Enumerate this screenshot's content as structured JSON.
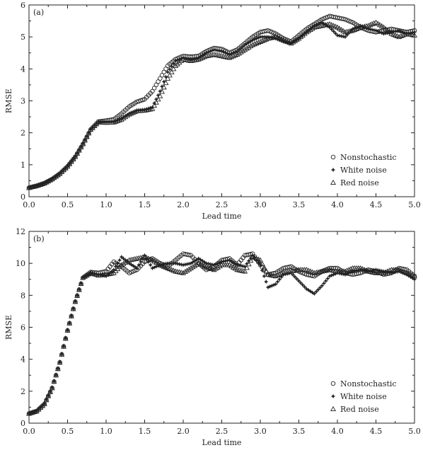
{
  "chart_data": [
    {
      "panel_label": "(a)",
      "type": "scatter",
      "xlabel": "Lead time",
      "ylabel": "RMSE",
      "xlim": [
        0,
        5
      ],
      "ylim": [
        0,
        6
      ],
      "xticks": [
        "0.0",
        "0.5",
        "1.0",
        "1.5",
        "2.0",
        "2.5",
        "3.0",
        "3.5",
        "4.0",
        "4.5",
        "5.0"
      ],
      "yticks": [
        "0",
        "1",
        "2",
        "3",
        "4",
        "5",
        "6"
      ],
      "legend_position": "bottom-right",
      "series": [
        {
          "name": "Nonstochastic",
          "marker": "circle",
          "x": [
            0,
            0.1,
            0.2,
            0.3,
            0.4,
            0.5,
            0.6,
            0.7,
            0.8,
            0.9,
            1.0,
            1.1,
            1.2,
            1.3,
            1.4,
            1.5,
            1.6,
            1.7,
            1.8,
            1.9,
            2.0,
            2.1,
            2.2,
            2.3,
            2.4,
            2.5,
            2.6,
            2.7,
            2.8,
            2.9,
            3.0,
            3.1,
            3.2,
            3.3,
            3.4,
            3.5,
            3.6,
            3.7,
            3.8,
            3.9,
            4.0,
            4.1,
            4.2,
            4.3,
            4.4,
            4.5,
            4.6,
            4.7,
            4.8,
            4.9,
            5.0
          ],
          "y": [
            0.28,
            0.34,
            0.42,
            0.55,
            0.72,
            0.95,
            1.25,
            1.65,
            2.1,
            2.35,
            2.38,
            2.42,
            2.6,
            2.82,
            2.97,
            3.05,
            3.3,
            3.7,
            4.1,
            4.3,
            4.4,
            4.38,
            4.4,
            4.55,
            4.65,
            4.62,
            4.5,
            4.6,
            4.8,
            5.0,
            5.15,
            5.2,
            5.1,
            4.95,
            4.85,
            5.05,
            5.25,
            5.4,
            5.55,
            5.65,
            5.6,
            5.55,
            5.45,
            5.3,
            5.2,
            5.15,
            5.2,
            5.25,
            5.2,
            5.15,
            5.2
          ]
        },
        {
          "name": "White noise",
          "marker": "star",
          "x": [
            0,
            0.1,
            0.2,
            0.3,
            0.4,
            0.5,
            0.6,
            0.7,
            0.8,
            0.9,
            1.0,
            1.1,
            1.2,
            1.3,
            1.4,
            1.5,
            1.6,
            1.7,
            1.8,
            1.9,
            2.0,
            2.1,
            2.2,
            2.3,
            2.4,
            2.5,
            2.6,
            2.7,
            2.8,
            2.9,
            3.0,
            3.1,
            3.2,
            3.3,
            3.4,
            3.5,
            3.6,
            3.7,
            3.8,
            3.9,
            4.0,
            4.1,
            4.2,
            4.3,
            4.4,
            4.5,
            4.6,
            4.7,
            4.8,
            4.9,
            5.0
          ],
          "y": [
            0.28,
            0.34,
            0.42,
            0.55,
            0.72,
            0.95,
            1.25,
            1.65,
            2.1,
            2.35,
            2.35,
            2.35,
            2.45,
            2.6,
            2.7,
            2.72,
            2.8,
            3.3,
            3.9,
            4.25,
            4.35,
            4.3,
            4.35,
            4.5,
            4.6,
            4.55,
            4.45,
            4.55,
            4.75,
            4.9,
            5.0,
            5.0,
            4.95,
            4.85,
            4.8,
            4.95,
            5.15,
            5.35,
            5.45,
            5.3,
            5.05,
            5.0,
            5.25,
            5.35,
            5.25,
            5.2,
            5.1,
            5.15,
            5.2,
            5.1,
            5.15
          ]
        },
        {
          "name": "Red noise",
          "marker": "triangle",
          "x": [
            0,
            0.1,
            0.2,
            0.3,
            0.4,
            0.5,
            0.6,
            0.7,
            0.8,
            0.9,
            1.0,
            1.1,
            1.2,
            1.3,
            1.4,
            1.5,
            1.6,
            1.7,
            1.8,
            1.9,
            2.0,
            2.1,
            2.2,
            2.3,
            2.4,
            2.5,
            2.6,
            2.7,
            2.8,
            2.9,
            3.0,
            3.1,
            3.2,
            3.3,
            3.4,
            3.5,
            3.6,
            3.7,
            3.8,
            3.9,
            4.0,
            4.1,
            4.2,
            4.3,
            4.4,
            4.5,
            4.6,
            4.7,
            4.8,
            4.9,
            5.0
          ],
          "y": [
            0.28,
            0.34,
            0.42,
            0.55,
            0.72,
            0.95,
            1.25,
            1.65,
            2.1,
            2.33,
            2.32,
            2.33,
            2.42,
            2.58,
            2.68,
            2.7,
            2.75,
            3.15,
            3.7,
            4.1,
            4.3,
            4.25,
            4.3,
            4.4,
            4.45,
            4.4,
            4.35,
            4.45,
            4.6,
            4.75,
            4.85,
            4.95,
            5.0,
            4.9,
            4.8,
            4.95,
            5.15,
            5.3,
            5.35,
            5.4,
            5.3,
            5.15,
            5.2,
            5.3,
            5.35,
            5.45,
            5.3,
            5.1,
            5.0,
            5.1,
            5.05
          ]
        }
      ]
    },
    {
      "panel_label": "(b)",
      "type": "scatter",
      "xlabel": "Lead time",
      "ylabel": "RMSE",
      "xlim": [
        0,
        5
      ],
      "ylim": [
        0,
        12
      ],
      "xticks": [
        "0.0",
        "0.5",
        "1.0",
        "1.5",
        "2.0",
        "2.5",
        "3.0",
        "3.5",
        "4.0",
        "4.5",
        "5.0"
      ],
      "yticks": [
        "0",
        "2",
        "4",
        "6",
        "8",
        "10",
        "12"
      ],
      "legend_position": "bottom-right",
      "series": [
        {
          "name": "Nonstochastic",
          "marker": "circle",
          "x": [
            0,
            0.1,
            0.2,
            0.3,
            0.4,
            0.5,
            0.6,
            0.7,
            0.8,
            0.9,
            1.0,
            1.1,
            1.2,
            1.3,
            1.4,
            1.5,
            1.6,
            1.7,
            1.8,
            1.9,
            2.0,
            2.1,
            2.2,
            2.3,
            2.4,
            2.5,
            2.6,
            2.7,
            2.8,
            2.9,
            3.0,
            3.1,
            3.2,
            3.3,
            3.4,
            3.5,
            3.6,
            3.7,
            3.8,
            3.9,
            4.0,
            4.1,
            4.2,
            4.3,
            4.4,
            4.5,
            4.6,
            4.7,
            4.8,
            4.9,
            5.0
          ],
          "y": [
            0.6,
            0.75,
            1.2,
            2.2,
            3.8,
            5.8,
            7.6,
            9.1,
            9.45,
            9.4,
            9.5,
            10.1,
            9.8,
            9.4,
            9.6,
            10.1,
            10.3,
            10.0,
            9.8,
            10.2,
            10.6,
            10.5,
            10.0,
            9.6,
            9.8,
            10.2,
            10.3,
            9.9,
            10.5,
            10.6,
            9.9,
            9.3,
            9.4,
            9.7,
            9.8,
            9.5,
            9.3,
            9.2,
            9.5,
            9.7,
            9.7,
            9.4,
            9.3,
            9.4,
            9.6,
            9.5,
            9.3,
            9.4,
            9.7,
            9.6,
            9.2
          ]
        },
        {
          "name": "White noise",
          "marker": "star",
          "x": [
            0,
            0.1,
            0.2,
            0.3,
            0.4,
            0.5,
            0.6,
            0.7,
            0.8,
            0.9,
            1.0,
            1.1,
            1.2,
            1.3,
            1.4,
            1.5,
            1.6,
            1.7,
            1.8,
            1.9,
            2.0,
            2.1,
            2.2,
            2.3,
            2.4,
            2.5,
            2.6,
            2.7,
            2.8,
            2.9,
            3.0,
            3.1,
            3.2,
            3.3,
            3.4,
            3.5,
            3.6,
            3.7,
            3.8,
            3.9,
            4.0,
            4.1,
            4.2,
            4.3,
            4.4,
            4.5,
            4.6,
            4.7,
            4.8,
            4.9,
            5.0
          ],
          "y": [
            0.6,
            0.75,
            1.2,
            2.2,
            3.8,
            5.8,
            7.6,
            9.1,
            9.4,
            9.3,
            9.2,
            9.6,
            10.4,
            10.0,
            9.7,
            10.5,
            9.7,
            9.9,
            10.0,
            10.0,
            9.9,
            10.0,
            10.3,
            10.0,
            9.9,
            10.1,
            10.2,
            9.9,
            9.8,
            10.5,
            9.9,
            8.5,
            8.7,
            9.3,
            9.4,
            8.9,
            8.4,
            8.1,
            8.6,
            9.2,
            9.4,
            9.3,
            9.5,
            9.6,
            9.5,
            9.6,
            9.5,
            9.4,
            9.5,
            9.3,
            9.0
          ]
        },
        {
          "name": "Red noise",
          "marker": "triangle",
          "x": [
            0,
            0.1,
            0.2,
            0.3,
            0.4,
            0.5,
            0.6,
            0.7,
            0.8,
            0.9,
            1.0,
            1.1,
            1.2,
            1.3,
            1.4,
            1.5,
            1.6,
            1.7,
            1.8,
            1.9,
            2.0,
            2.1,
            2.2,
            2.3,
            2.4,
            2.5,
            2.6,
            2.7,
            2.8,
            2.9,
            3.0,
            3.1,
            3.2,
            3.3,
            3.4,
            3.5,
            3.6,
            3.7,
            3.8,
            3.9,
            4.0,
            4.1,
            4.2,
            4.3,
            4.4,
            4.5,
            4.6,
            4.7,
            4.8,
            4.9,
            5.0
          ],
          "y": [
            0.6,
            0.75,
            1.2,
            2.2,
            3.8,
            5.8,
            7.6,
            9.1,
            9.4,
            9.25,
            9.3,
            9.4,
            9.9,
            10.2,
            10.3,
            10.4,
            10.2,
            9.9,
            9.7,
            9.5,
            9.4,
            9.7,
            10.0,
            9.8,
            9.6,
            9.9,
            9.9,
            9.6,
            9.5,
            10.4,
            10.2,
            9.3,
            9.2,
            9.4,
            9.5,
            9.6,
            9.6,
            9.4,
            9.5,
            9.6,
            9.5,
            9.5,
            9.7,
            9.7,
            9.5,
            9.4,
            9.4,
            9.6,
            9.6,
            9.4,
            9.2
          ]
        }
      ]
    }
  ]
}
